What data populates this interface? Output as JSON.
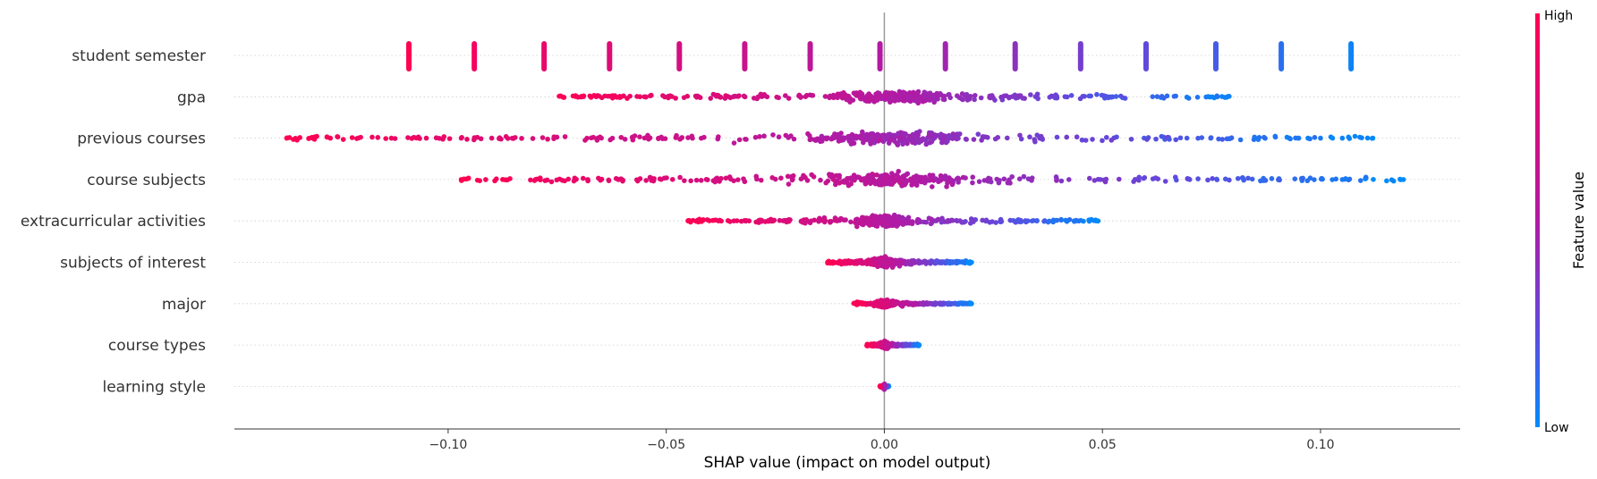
{
  "chart_data": {
    "type": "scatter",
    "subtype": "beeswarm",
    "xlabel": "SHAP value (impact on model output)",
    "xlim": [
      -0.149,
      0.132
    ],
    "xticks": [
      {
        "value": -0.1,
        "label": "−0.10"
      },
      {
        "value": -0.05,
        "label": "−0.05"
      },
      {
        "value": 0.0,
        "label": "0.00"
      },
      {
        "value": 0.05,
        "label": "0.05"
      },
      {
        "value": 0.1,
        "label": "0.10"
      }
    ],
    "zero_line": 0.0,
    "grid": false,
    "colorbar": {
      "title": "Feature value",
      "high_label": "High",
      "low_label": "Low",
      "high_color": "#ff0052",
      "low_color": "#008bfb",
      "position": "right"
    },
    "features": [
      {
        "name": "student semester",
        "kind": "discrete",
        "points": [
          {
            "x": -0.109,
            "v": 1.0
          },
          {
            "x": -0.094,
            "v": 0.93
          },
          {
            "x": -0.078,
            "v": 0.86
          },
          {
            "x": -0.063,
            "v": 0.79
          },
          {
            "x": -0.047,
            "v": 0.72
          },
          {
            "x": -0.032,
            "v": 0.65
          },
          {
            "x": -0.017,
            "v": 0.58
          },
          {
            "x": -0.001,
            "v": 0.52
          },
          {
            "x": 0.014,
            "v": 0.45
          },
          {
            "x": 0.03,
            "v": 0.38
          },
          {
            "x": 0.045,
            "v": 0.31
          },
          {
            "x": 0.06,
            "v": 0.24
          },
          {
            "x": 0.076,
            "v": 0.17
          },
          {
            "x": 0.091,
            "v": 0.1
          },
          {
            "x": 0.107,
            "v": 0.03
          }
        ]
      },
      {
        "name": "gpa",
        "kind": "range",
        "min": -0.075,
        "max": 0.082,
        "spread": 0.9,
        "peak": 0.003
      },
      {
        "name": "previous courses",
        "kind": "range",
        "min": -0.137,
        "max": 0.112,
        "spread": 1.0,
        "peak": 0.002,
        "outliers": [
          -0.137,
          -0.127,
          -0.113,
          -0.105,
          -0.097,
          -0.09,
          0.095,
          0.1,
          0.105,
          0.112
        ]
      },
      {
        "name": "course subjects",
        "kind": "range",
        "min": -0.097,
        "max": 0.119,
        "spread": 1.0,
        "peak": 0.002,
        "outliers": [
          -0.097,
          -0.08,
          -0.068,
          -0.061,
          0.07,
          0.105,
          0.119
        ]
      },
      {
        "name": "extracurricular activities",
        "kind": "range",
        "min": -0.045,
        "max": 0.049,
        "spread": 0.85,
        "peak": 0.0,
        "outliers": [
          -0.045,
          -0.038,
          -0.031,
          0.031,
          0.049
        ]
      },
      {
        "name": "subjects of interest",
        "kind": "range",
        "min": -0.013,
        "max": 0.02,
        "spread": 0.7,
        "peak": 0.0,
        "outliers": [
          -0.013,
          0.016,
          0.02
        ]
      },
      {
        "name": "major",
        "kind": "range",
        "min": -0.007,
        "max": 0.02,
        "spread": 0.55,
        "peak": 0.0,
        "outliers": [
          0.011,
          0.02
        ]
      },
      {
        "name": "course types",
        "kind": "range",
        "min": -0.004,
        "max": 0.008,
        "spread": 0.5,
        "peak": 0.0,
        "outliers": [
          0.008
        ]
      },
      {
        "name": "learning style",
        "kind": "range",
        "min": -0.001,
        "max": 0.001,
        "spread": 0.35,
        "peak": 0.0
      }
    ]
  }
}
